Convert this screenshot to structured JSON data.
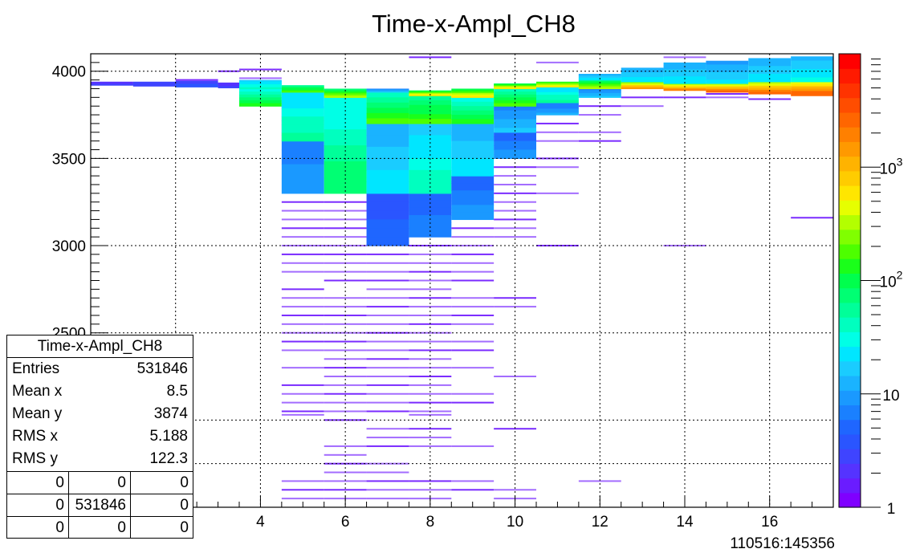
{
  "chart_data": {
    "type": "heatmap",
    "title": "Time-x-Ampl_CH8",
    "xlim": [
      0,
      17.5
    ],
    "ylim": [
      1500,
      4100
    ],
    "x_ticks": [
      2,
      4,
      6,
      8,
      10,
      12,
      14,
      16
    ],
    "y_ticks": [
      2000,
      2500,
      3000,
      3500,
      4000
    ],
    "grid": true,
    "bottom_right_label": "110516:145356",
    "colorbar": {
      "scale": "log",
      "min": 1,
      "max": 10000,
      "tick_labels": [
        {
          "value": 1,
          "base": "1",
          "exp": ""
        },
        {
          "value": 10,
          "base": "10",
          "exp": ""
        },
        {
          "value": 100,
          "base": "10",
          "exp": "2"
        },
        {
          "value": 1000,
          "base": "10",
          "exp": "3"
        }
      ],
      "colors": [
        "#7f00ff",
        "#6a1cff",
        "#5533ff",
        "#3f44ff",
        "#2a55ff",
        "#1f66ff",
        "#1a80ff",
        "#1a99ff",
        "#1ab3ff",
        "#1accff",
        "#00e6ff",
        "#00ffe6",
        "#00ffbf",
        "#00ff99",
        "#00ff73",
        "#00ff4d",
        "#1aff1a",
        "#4dff00",
        "#80ff00",
        "#b3ff00",
        "#e6ff00",
        "#ffe600",
        "#ffcc00",
        "#ffb300",
        "#ff9900",
        "#ff8000",
        "#ff6600",
        "#ff4d00",
        "#ff3300",
        "#ff1a00",
        "#ff0000"
      ]
    },
    "columns": [
      {
        "x0": 0,
        "x1": 1,
        "bands": [
          {
            "y0": 3920,
            "y1": 3940,
            "level": 0.08
          }
        ],
        "lines": []
      },
      {
        "x0": 1,
        "x1": 2,
        "bands": [
          {
            "y0": 3915,
            "y1": 3940,
            "level": 0.1
          }
        ],
        "lines": []
      },
      {
        "x0": 2,
        "x1": 3,
        "bands": [
          {
            "y0": 3910,
            "y1": 3945,
            "level": 0.12
          }
        ],
        "lines": [
          3950
        ]
      },
      {
        "x0": 3,
        "x1": 3.5,
        "bands": [
          {
            "y0": 3905,
            "y1": 3935,
            "level": 0.08
          }
        ],
        "lines": [
          4000
        ]
      },
      {
        "x0": 3.5,
        "x1": 4.5,
        "bands": [
          {
            "y0": 3800,
            "y1": 3900,
            "level": 0.45
          },
          {
            "y0": 3900,
            "y1": 3950,
            "level": 0.35
          }
        ],
        "lines": [
          4010,
          3960
        ]
      },
      {
        "x0": 4.5,
        "x1": 5.5,
        "bands": [
          {
            "y0": 3300,
            "y1": 3800,
            "level": 0.2
          },
          {
            "y0": 3600,
            "y1": 3880,
            "level": 0.38
          },
          {
            "y0": 3880,
            "y1": 3920,
            "level": 0.5
          }
        ],
        "lines": [
          3250,
          3200,
          3150,
          3100,
          3050,
          3000,
          2950,
          2900,
          2850,
          2750,
          2700,
          2650,
          2600,
          2550,
          2500,
          2450,
          2400,
          2300,
          2200,
          2150,
          2100,
          2050,
          2030,
          1650,
          1600,
          1550
        ]
      },
      {
        "x0": 5.5,
        "x1": 6.5,
        "bands": [
          {
            "y0": 3300,
            "y1": 3850,
            "level": 0.42
          },
          {
            "y0": 3850,
            "y1": 3900,
            "level": 0.55
          }
        ],
        "lines": [
          3250,
          3200,
          3150,
          3100,
          3050,
          3000,
          2950,
          2900,
          2850,
          2800,
          2700,
          2650,
          2600,
          2550,
          2500,
          2450,
          2400,
          2350,
          2300,
          2250,
          2200,
          2150,
          2100,
          2050,
          2000,
          1850,
          1800,
          1750,
          1700,
          1650,
          1600,
          1550
        ]
      },
      {
        "x0": 6.5,
        "x1": 7.5,
        "bands": [
          {
            "y0": 3000,
            "y1": 3300,
            "level": 0.15
          },
          {
            "y0": 3300,
            "y1": 3700,
            "level": 0.3
          },
          {
            "y0": 3700,
            "y1": 3880,
            "level": 0.48
          },
          {
            "y0": 3880,
            "y1": 3900,
            "level": 0.25
          }
        ],
        "lines": [
          2950,
          2900,
          2850,
          2800,
          2750,
          2700,
          2650,
          2600,
          2550,
          2500,
          2450,
          2400,
          2350,
          2300,
          2250,
          2200,
          2150,
          2100,
          2050,
          1950,
          1900,
          1850,
          1750,
          1700,
          1650,
          1600,
          1550
        ]
      },
      {
        "x0": 7.5,
        "x1": 8.5,
        "bands": [
          {
            "y0": 3050,
            "y1": 3300,
            "level": 0.18
          },
          {
            "y0": 3300,
            "y1": 3700,
            "level": 0.36
          },
          {
            "y0": 3700,
            "y1": 3860,
            "level": 0.5
          },
          {
            "y0": 3860,
            "y1": 3890,
            "level": 0.6
          }
        ],
        "lines": [
          3000,
          2950,
          2900,
          2850,
          2800,
          2750,
          2700,
          2650,
          2600,
          2550,
          2500,
          2450,
          2400,
          2350,
          2300,
          2250,
          2200,
          2150,
          2100,
          2050,
          2030,
          1950,
          1900,
          1850,
          1650,
          1600,
          1550,
          4080
        ]
      },
      {
        "x0": 8.5,
        "x1": 9.5,
        "bands": [
          {
            "y0": 3150,
            "y1": 3400,
            "level": 0.2
          },
          {
            "y0": 3400,
            "y1": 3700,
            "level": 0.3
          },
          {
            "y0": 3700,
            "y1": 3850,
            "level": 0.45
          },
          {
            "y0": 3850,
            "y1": 3900,
            "level": 0.6
          }
        ],
        "lines": [
          3100,
          3050,
          3000,
          2950,
          2900,
          2850,
          2800,
          2700,
          2650,
          2600,
          2550,
          2450,
          2400,
          2300,
          2150,
          2100,
          1850,
          1650,
          1600
        ]
      },
      {
        "x0": 9.5,
        "x1": 10.5,
        "bands": [
          {
            "y0": 3500,
            "y1": 3650,
            "level": 0.2
          },
          {
            "y0": 3650,
            "y1": 3800,
            "level": 0.25
          },
          {
            "y0": 3800,
            "y1": 3900,
            "level": 0.48
          },
          {
            "y0": 3900,
            "y1": 3930,
            "level": 0.6
          }
        ],
        "lines": [
          3450,
          3400,
          3350,
          3300,
          3250,
          3200,
          3150,
          3100,
          3050,
          2700,
          2650,
          2250,
          1950,
          1600,
          1550
        ]
      },
      {
        "x0": 10.5,
        "x1": 11.5,
        "bands": [
          {
            "y0": 3750,
            "y1": 3820,
            "level": 0.22
          },
          {
            "y0": 3820,
            "y1": 3910,
            "level": 0.38
          },
          {
            "y0": 3910,
            "y1": 3940,
            "level": 0.62
          }
        ],
        "lines": [
          3700,
          3650,
          3600,
          3500,
          3450,
          3300,
          3000,
          4050
        ]
      },
      {
        "x0": 11.5,
        "x1": 12.5,
        "bands": [
          {
            "y0": 3850,
            "y1": 3900,
            "level": 0.25
          },
          {
            "y0": 3900,
            "y1": 3950,
            "level": 0.55
          },
          {
            "y0": 3950,
            "y1": 3985,
            "level": 0.3
          }
        ],
        "lines": [
          3800,
          3750,
          3650,
          3600,
          1650
        ]
      },
      {
        "x0": 12.5,
        "x1": 13.5,
        "bands": [
          {
            "y0": 3900,
            "y1": 3940,
            "level": 0.7
          },
          {
            "y0": 3940,
            "y1": 4020,
            "level": 0.3
          }
        ],
        "lines": [
          3850,
          3800
        ]
      },
      {
        "x0": 13.5,
        "x1": 14.5,
        "bands": [
          {
            "y0": 3890,
            "y1": 3930,
            "level": 0.72
          },
          {
            "y0": 3930,
            "y1": 4050,
            "level": 0.3
          }
        ],
        "lines": [
          3850,
          3000,
          4080
        ]
      },
      {
        "x0": 14.5,
        "x1": 15.5,
        "bands": [
          {
            "y0": 3880,
            "y1": 3930,
            "level": 0.75
          },
          {
            "y0": 3930,
            "y1": 4060,
            "level": 0.28
          }
        ],
        "lines": [
          3870,
          3850
        ]
      },
      {
        "x0": 15.5,
        "x1": 16.5,
        "bands": [
          {
            "y0": 3870,
            "y1": 3940,
            "level": 0.75
          },
          {
            "y0": 3940,
            "y1": 4075,
            "level": 0.3
          }
        ],
        "lines": [
          3840
        ]
      },
      {
        "x0": 16.5,
        "x1": 17.5,
        "bands": [
          {
            "y0": 3860,
            "y1": 3940,
            "level": 0.78
          },
          {
            "y0": 3940,
            "y1": 4085,
            "level": 0.32
          }
        ],
        "lines": [
          3160
        ]
      }
    ]
  },
  "stats": {
    "title": "Time-x-Ampl_CH8",
    "rows": [
      {
        "label": "Entries",
        "value": "531846"
      },
      {
        "label": "Mean x",
        "value": "8.5"
      },
      {
        "label": "Mean y",
        "value": "3874"
      },
      {
        "label": "RMS x",
        "value": "5.188"
      },
      {
        "label": "RMS y",
        "value": "122.3"
      }
    ],
    "grid": [
      [
        "0",
        "0",
        "0"
      ],
      [
        "0",
        "531846",
        "0"
      ],
      [
        "0",
        "0",
        "0"
      ]
    ]
  }
}
